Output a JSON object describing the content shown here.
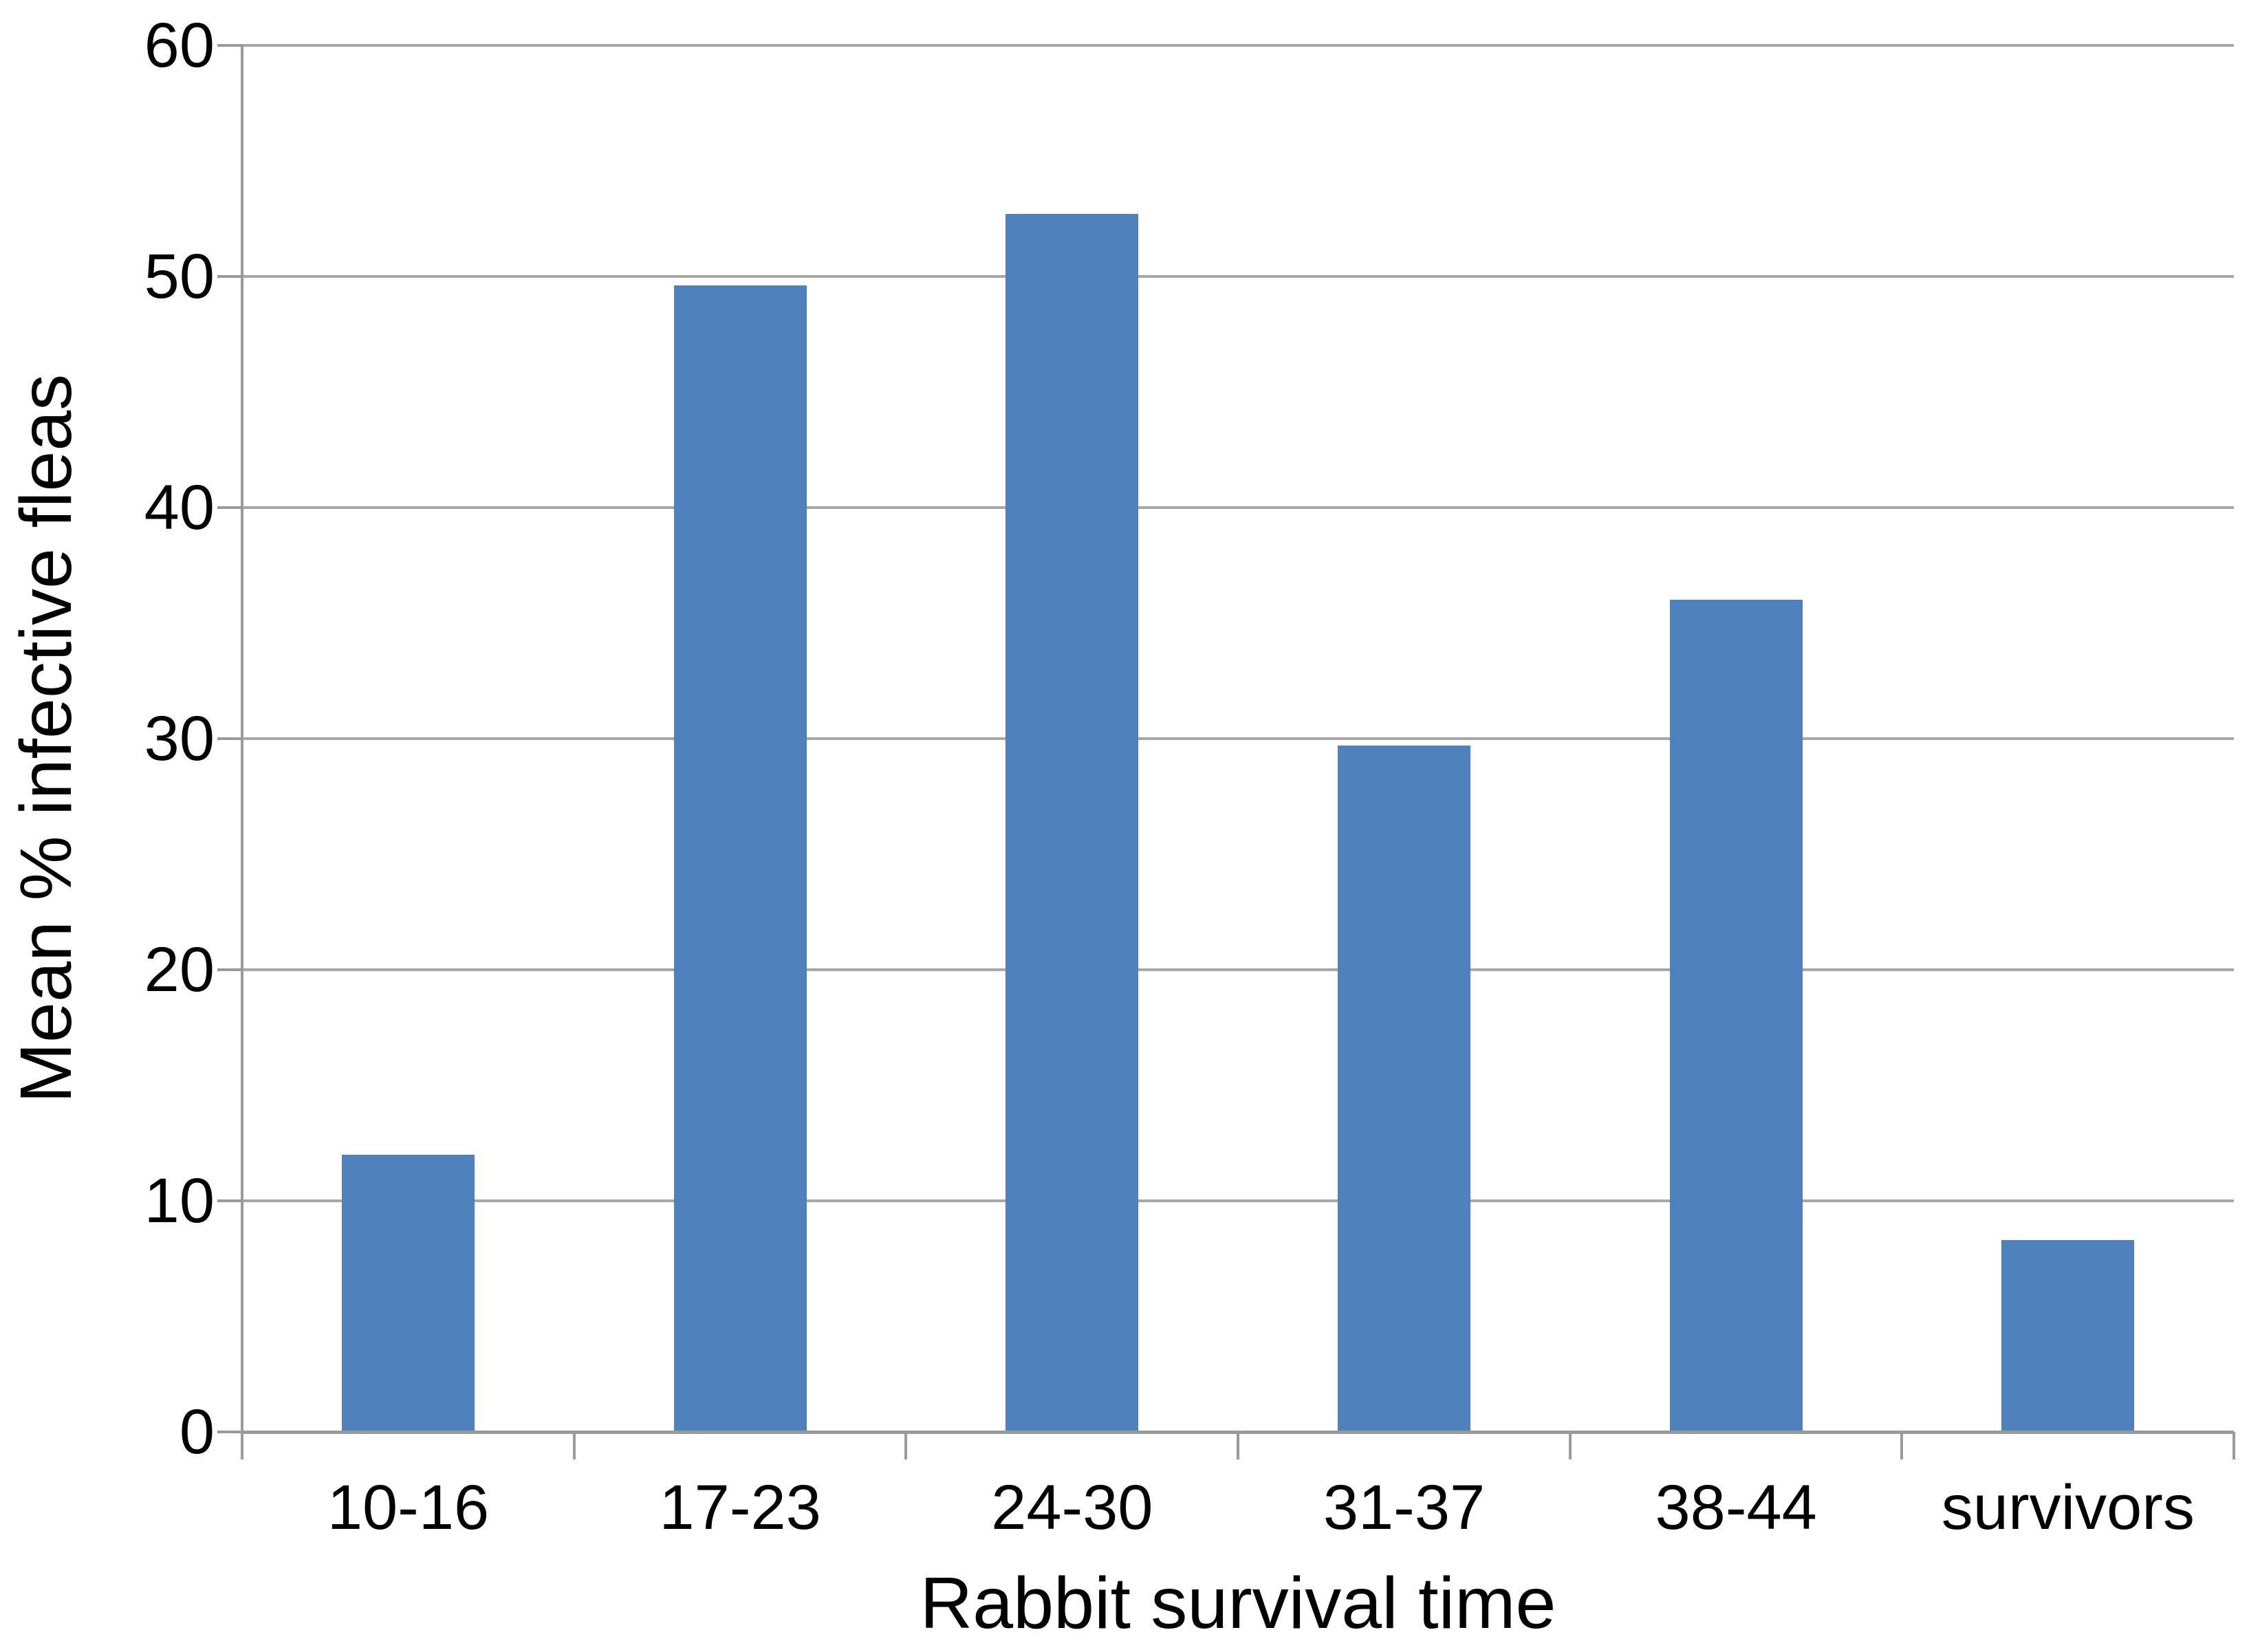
{
  "chart_data": {
    "type": "bar",
    "title": "",
    "categories": [
      "10-16",
      "17-23",
      "24-30",
      "31-37",
      "38-44",
      "survivors"
    ],
    "values": [
      12,
      49.6,
      52.7,
      29.7,
      36,
      8.3
    ],
    "series": [
      {
        "name": "Mean % infective fleas",
        "values": [
          12,
          49.6,
          52.7,
          29.7,
          36,
          8.3
        ]
      }
    ],
    "xlabel": "Rabbit survival time",
    "ylabel": "Mean % infective fleas",
    "ylim": [
      0,
      60
    ],
    "yticks": [
      0,
      10,
      20,
      30,
      40,
      50,
      60
    ],
    "grid": true,
    "legend": "none",
    "colors": {
      "bar_fill": "#4F81BD",
      "gridline": "#A6A6A6",
      "axis_line": "#9A9A9A",
      "text": "#000000",
      "background": "#FFFFFF"
    }
  }
}
